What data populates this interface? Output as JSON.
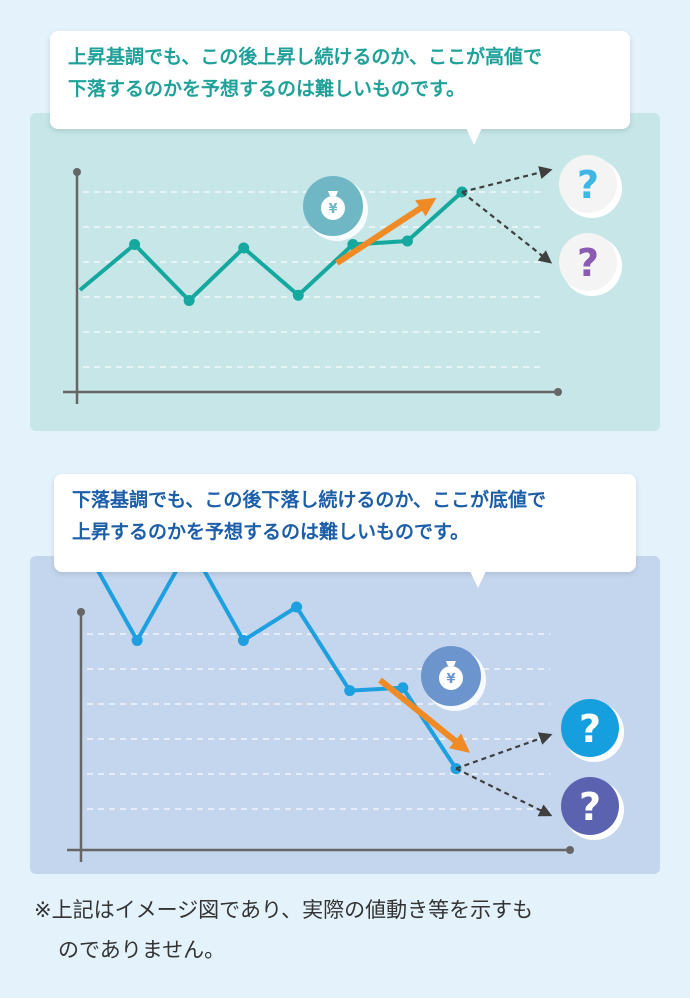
{
  "callout_up": {
    "line1": "上昇基調でも、この後上昇し続けるのか、ここが高値で",
    "line2": "下落するのかを予想するのは難しいものです。"
  },
  "callout_down": {
    "line1": "下落基調でも、この後下落し続けるのか、ここが底値で",
    "line2": "上昇するのかを予想するのは難しいものです。"
  },
  "footnote": {
    "line1": "※上記はイメージ図であり、実際の値動き等を示すも",
    "line2": "のでありません。"
  },
  "icons": {
    "money_bag": "money-bag-icon",
    "question": "question-mark-icon",
    "trend_arrow": "trend-arrow-icon"
  },
  "money_bag_symbol": "¥",
  "question_symbol": "?",
  "colors": {
    "up_line": "#15a89e",
    "down_line": "#1ea0e0",
    "trend_arrow": "#f08a24",
    "q_up_top": "#3fb6e4",
    "q_up_bottom": "#8a5bb0",
    "q_down_top": "#169fde",
    "q_down_bottom": "#5b63b0",
    "bag_up": "#6fb7c4",
    "bag_down": "#6c94cd"
  },
  "chart_data": [
    {
      "type": "line",
      "trend": "up",
      "x": [
        0,
        1,
        2,
        3,
        4,
        5,
        6,
        7
      ],
      "y": [
        3.0,
        4.3,
        2.7,
        4.2,
        2.85,
        4.3,
        4.4,
        5.8
      ],
      "ylim": [
        0,
        7
      ],
      "grid": true,
      "branches": [
        "up",
        "down"
      ]
    },
    {
      "type": "line",
      "trend": "down",
      "x": [
        0,
        1,
        2,
        3,
        4,
        5,
        6,
        7
      ],
      "y": [
        6.0,
        4.3,
        6.0,
        4.3,
        4.9,
        3.4,
        3.45,
        2.0
      ],
      "ylim": [
        0,
        7
      ],
      "grid": true,
      "branches": [
        "up",
        "down"
      ]
    }
  ]
}
